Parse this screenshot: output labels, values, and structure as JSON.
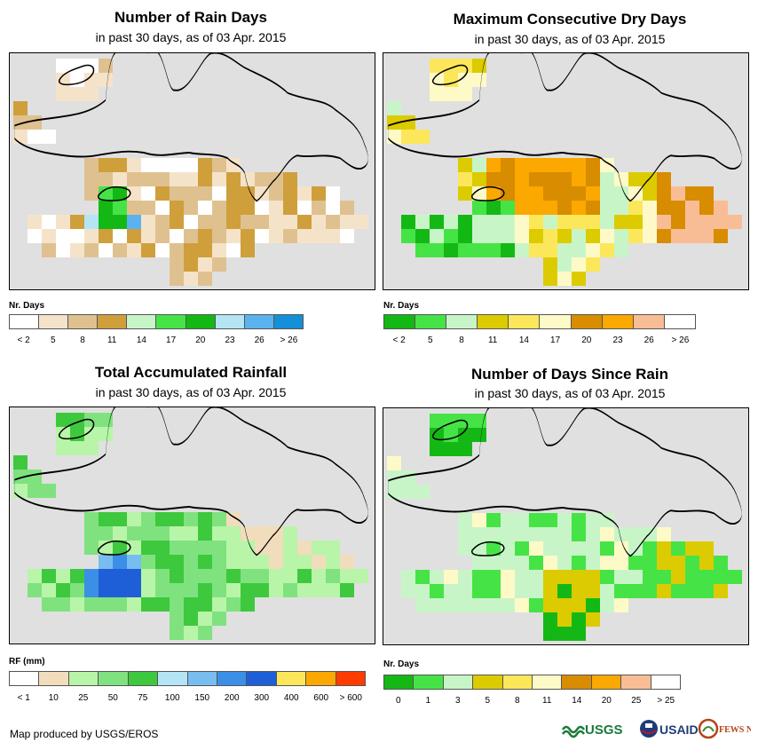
{
  "panels": {
    "rain_days": {
      "title": "Number of Rain Days",
      "subtitle": "in past 30 days, as of 03 Apr. 2015",
      "legend_title": "Nr. Days",
      "legend_colors": [
        "#ffffff",
        "#f5e3c9",
        "#dfc190",
        "#cf9f3c",
        "#c8f5c8",
        "#46e346",
        "#14b814",
        "#b3e5f5",
        "#5ab3ef",
        "#1490d8"
      ],
      "legend_labels": [
        "< 2",
        "5",
        "8",
        "11",
        "14",
        "17",
        "20",
        "23",
        "26",
        "> 26"
      ]
    },
    "dry_days": {
      "title": "Maximum Consecutive Dry Days",
      "subtitle": "in past 30 days, as of 03 Apr. 2015",
      "legend_title": "Nr. Days",
      "legend_colors": [
        "#14b814",
        "#46e346",
        "#c8f5c8",
        "#dccb00",
        "#fce75a",
        "#fefac8",
        "#d88c00",
        "#fba800",
        "#f9bd96",
        "#ffffff"
      ],
      "legend_labels": [
        "< 2",
        "5",
        "8",
        "11",
        "14",
        "17",
        "20",
        "23",
        "26",
        "> 26"
      ]
    },
    "rainfall": {
      "title": "Total Accumulated Rainfall",
      "subtitle": "in past 30 days, as of 03 Apr. 2015",
      "legend_title": "RF (mm)",
      "legend_colors": [
        "#ffffff",
        "#f1dcbc",
        "#b8f5a8",
        "#7fe27f",
        "#3ec83e",
        "#b3e5f5",
        "#78bdf0",
        "#3b8fe6",
        "#1e5fd8",
        "#fce75a",
        "#fba800",
        "#ff3c00"
      ],
      "legend_labels": [
        "< 1",
        "10",
        "25",
        "50",
        "75",
        "100",
        "150",
        "200",
        "300",
        "400",
        "600",
        "> 600"
      ]
    },
    "days_since": {
      "title": "Number of Days Since Rain",
      "subtitle": "in past 30 days, as of 03 Apr. 2015",
      "legend_title": "Nr. Days",
      "legend_colors": [
        "#14b814",
        "#46e346",
        "#c8f5c8",
        "#dccb00",
        "#fce75a",
        "#fefac8",
        "#d88c00",
        "#fba800",
        "#f9bd96",
        "#ffffff"
      ],
      "legend_labels": [
        "0",
        "1",
        "3",
        "5",
        "8",
        "11",
        "14",
        "20",
        "25",
        "> 25"
      ]
    }
  },
  "credit": "Map produced by USGS/EROS",
  "logos": {
    "usgs": "USGS",
    "usaid": "USAID",
    "fewsnet": "FEWS NET"
  }
}
